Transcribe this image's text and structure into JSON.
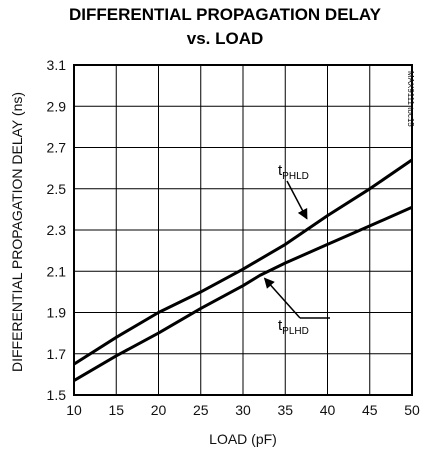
{
  "chart_data": {
    "type": "line",
    "title_line1": "DIFFERENTIAL PROPAGATION DELAY",
    "title_line2": "vs. LOAD",
    "xlabel": "LOAD (pF)",
    "ylabel": "DIFFERENTIAL PROPAGATION DELAY (ns)",
    "xlim": [
      10,
      50
    ],
    "ylim": [
      1.5,
      3.1
    ],
    "x_ticks": [
      "10",
      "15",
      "20",
      "25",
      "30",
      "35",
      "40",
      "45",
      "50"
    ],
    "y_ticks": [
      "3.1",
      "2.9",
      "2.7",
      "2.5",
      "2.3",
      "2.1",
      "1.9",
      "1.7",
      "1.5"
    ],
    "grid": true,
    "corner_note": "MAX9111 toc15",
    "series": [
      {
        "name": "tPHLD",
        "label_main": "t",
        "label_sub": "PHLD",
        "x": [
          10,
          15,
          20,
          25,
          30,
          35,
          40,
          45,
          50
        ],
        "y": [
          1.65,
          1.78,
          1.9,
          2.0,
          2.11,
          2.23,
          2.37,
          2.5,
          2.64
        ]
      },
      {
        "name": "tPLHD",
        "label_main": "t",
        "label_sub": "PLHD",
        "x": [
          10,
          15,
          20,
          25,
          30,
          32,
          35,
          40,
          45,
          50
        ],
        "y": [
          1.57,
          1.69,
          1.8,
          1.92,
          2.03,
          2.08,
          2.14,
          2.23,
          2.32,
          2.41
        ]
      }
    ]
  }
}
